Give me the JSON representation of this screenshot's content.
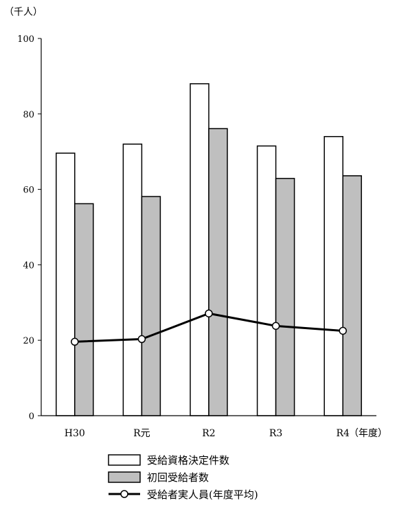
{
  "chart_data": {
    "type": "bar",
    "y_unit": "（千人）",
    "x_unit": "（年度）",
    "categories": [
      "H30",
      "R元",
      "R2",
      "R3",
      "R4"
    ],
    "ylim": [
      0,
      100
    ],
    "yticks": [
      0,
      20,
      40,
      60,
      80,
      100
    ],
    "grid": false,
    "legend_position": "bottom",
    "series": [
      {
        "name": "受給資格決定件数",
        "type": "bar",
        "color": "#ffffff",
        "values": [
          69.6,
          72.0,
          88.0,
          71.5,
          74.0
        ]
      },
      {
        "name": "初回受給者数",
        "type": "bar",
        "color": "#bfbfbf",
        "values": [
          56.2,
          58.1,
          76.1,
          62.9,
          63.6
        ]
      },
      {
        "name": "受給者実人員(年度平均)",
        "type": "line",
        "color": "#000000",
        "values": [
          19.6,
          20.3,
          27.1,
          23.8,
          22.5
        ]
      }
    ]
  }
}
